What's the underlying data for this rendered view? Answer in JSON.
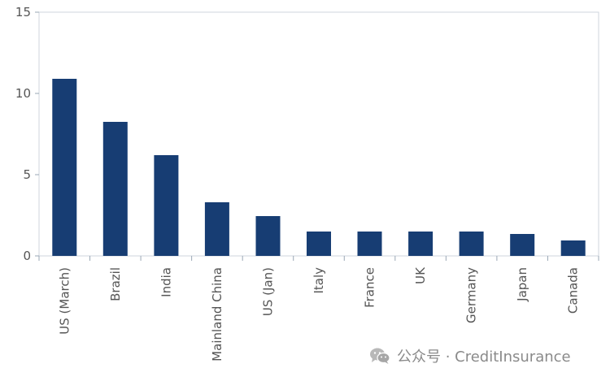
{
  "chart_data": {
    "type": "bar",
    "categories": [
      "US (March)",
      "Brazil",
      "India",
      "Mainland China",
      "US (Jan)",
      "Italy",
      "France",
      "UK",
      "Germany",
      "Japan",
      "Canada"
    ],
    "values": [
      10.9,
      8.25,
      6.2,
      3.3,
      2.45,
      1.5,
      1.5,
      1.5,
      1.5,
      1.35,
      0.95
    ],
    "yticks": [
      0,
      5,
      10,
      15
    ],
    "ylim": [
      0,
      15
    ],
    "grid": false,
    "bar_color": "#173d73"
  },
  "watermark": {
    "text": "公众号 · CreditInsurance",
    "icon": "wechat-icon"
  }
}
